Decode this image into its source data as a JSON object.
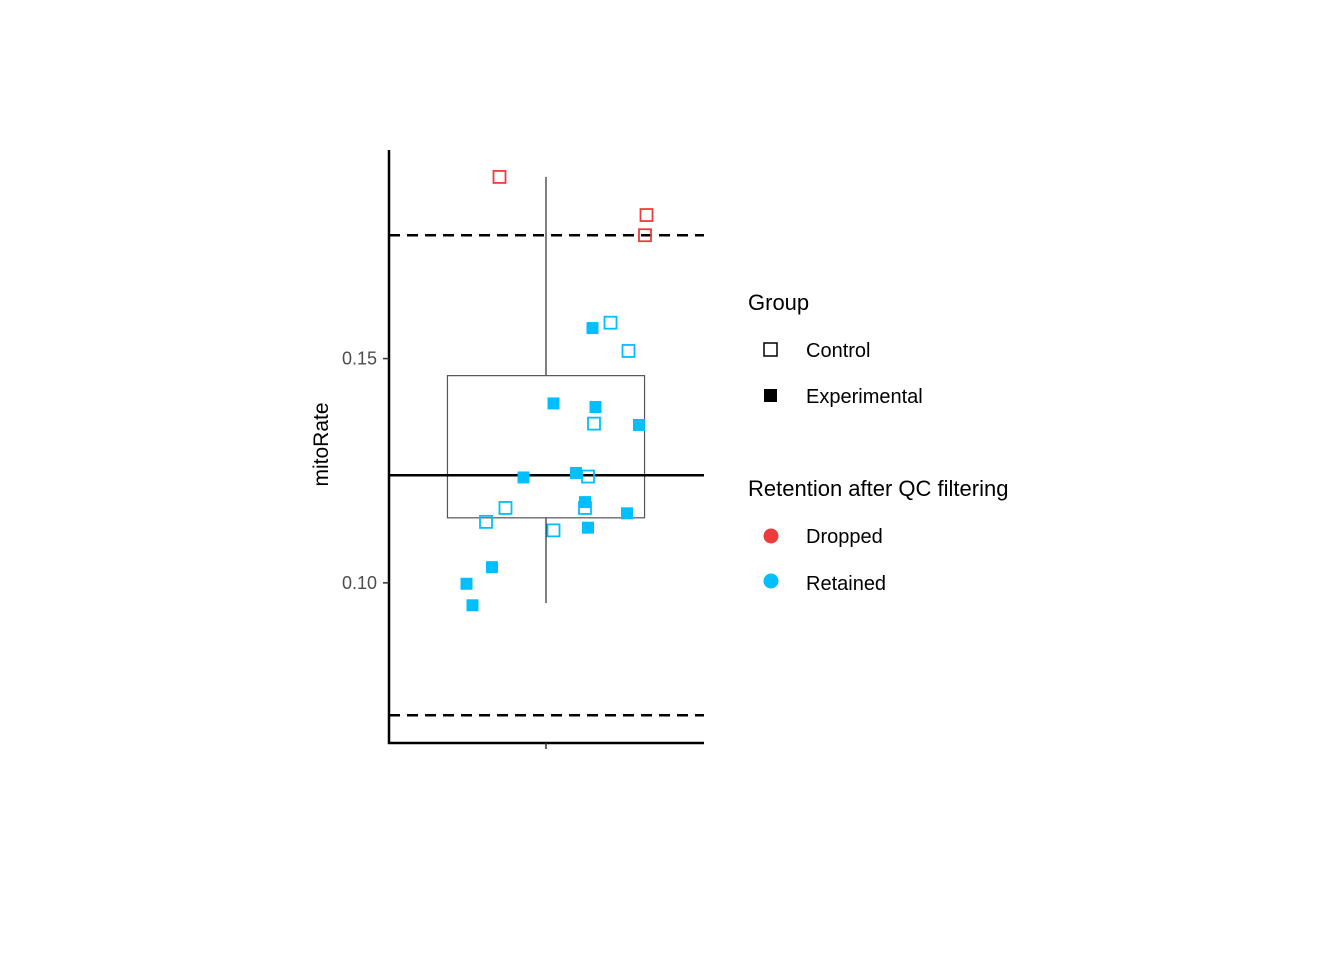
{
  "chart_data": {
    "type": "scatter",
    "title": "",
    "xlabel": "",
    "ylabel": "mitoRate",
    "ylim": [
      0.0643,
      0.1965
    ],
    "y_ticks": [
      {
        "value": 0.1,
        "label": "0.10"
      },
      {
        "value": 0.15,
        "label": "0.15"
      }
    ],
    "x_ticks": [
      {
        "value": 0,
        "label": ""
      }
    ],
    "grid": false,
    "boxplot": {
      "lower_whisker": 0.0955,
      "q1": 0.1145,
      "median": 0.124,
      "q3": 0.1462,
      "upper_whisker": 0.1905
    },
    "reference_lines": [
      {
        "style": "solid",
        "value": 0.124
      },
      {
        "style": "dashed",
        "value": 0.1775
      },
      {
        "style": "dashed",
        "value": 0.0705
      }
    ],
    "points": [
      {
        "x": -0.31,
        "y": 0.1905,
        "group": "Control",
        "retention": "Dropped"
      },
      {
        "x": 0.67,
        "y": 0.182,
        "group": "Control",
        "retention": "Dropped"
      },
      {
        "x": 0.66,
        "y": 0.1775,
        "group": "Control",
        "retention": "Dropped"
      },
      {
        "x": 0.43,
        "y": 0.158,
        "group": "Control",
        "retention": "Retained"
      },
      {
        "x": 0.55,
        "y": 0.1517,
        "group": "Control",
        "retention": "Retained"
      },
      {
        "x": 0.32,
        "y": 0.1355,
        "group": "Control",
        "retention": "Retained"
      },
      {
        "x": 0.28,
        "y": 0.1237,
        "group": "Control",
        "retention": "Retained"
      },
      {
        "x": 0.26,
        "y": 0.1167,
        "group": "Control",
        "retention": "Retained"
      },
      {
        "x": -0.27,
        "y": 0.1167,
        "group": "Control",
        "retention": "Retained"
      },
      {
        "x": -0.4,
        "y": 0.1136,
        "group": "Control",
        "retention": "Retained"
      },
      {
        "x": 0.05,
        "y": 0.1117,
        "group": "Control",
        "retention": "Retained"
      },
      {
        "x": 0.31,
        "y": 0.1568,
        "group": "Experimental",
        "retention": "Retained"
      },
      {
        "x": 0.05,
        "y": 0.14,
        "group": "Experimental",
        "retention": "Retained"
      },
      {
        "x": 0.33,
        "y": 0.1392,
        "group": "Experimental",
        "retention": "Retained"
      },
      {
        "x": 0.62,
        "y": 0.1352,
        "group": "Experimental",
        "retention": "Retained"
      },
      {
        "x": 0.2,
        "y": 0.1245,
        "group": "Experimental",
        "retention": "Retained"
      },
      {
        "x": -0.15,
        "y": 0.1235,
        "group": "Experimental",
        "retention": "Retained"
      },
      {
        "x": 0.26,
        "y": 0.118,
        "group": "Experimental",
        "retention": "Retained"
      },
      {
        "x": 0.54,
        "y": 0.1155,
        "group": "Experimental",
        "retention": "Retained"
      },
      {
        "x": 0.28,
        "y": 0.1123,
        "group": "Experimental",
        "retention": "Retained"
      },
      {
        "x": -0.36,
        "y": 0.1035,
        "group": "Experimental",
        "retention": "Retained"
      },
      {
        "x": -0.53,
        "y": 0.0998,
        "group": "Experimental",
        "retention": "Retained"
      },
      {
        "x": -0.49,
        "y": 0.095,
        "group": "Experimental",
        "retention": "Retained"
      }
    ],
    "legend": {
      "placement": "right",
      "group": {
        "title": "Group",
        "items": [
          {
            "label": "Control",
            "shape": "open-square"
          },
          {
            "label": "Experimental",
            "shape": "filled-square"
          }
        ]
      },
      "retention": {
        "title": "Retention after QC filtering",
        "items": [
          {
            "label": "Dropped",
            "color": "#EE3B3B"
          },
          {
            "label": "Retained",
            "color": "#00BFFF"
          }
        ]
      }
    }
  }
}
